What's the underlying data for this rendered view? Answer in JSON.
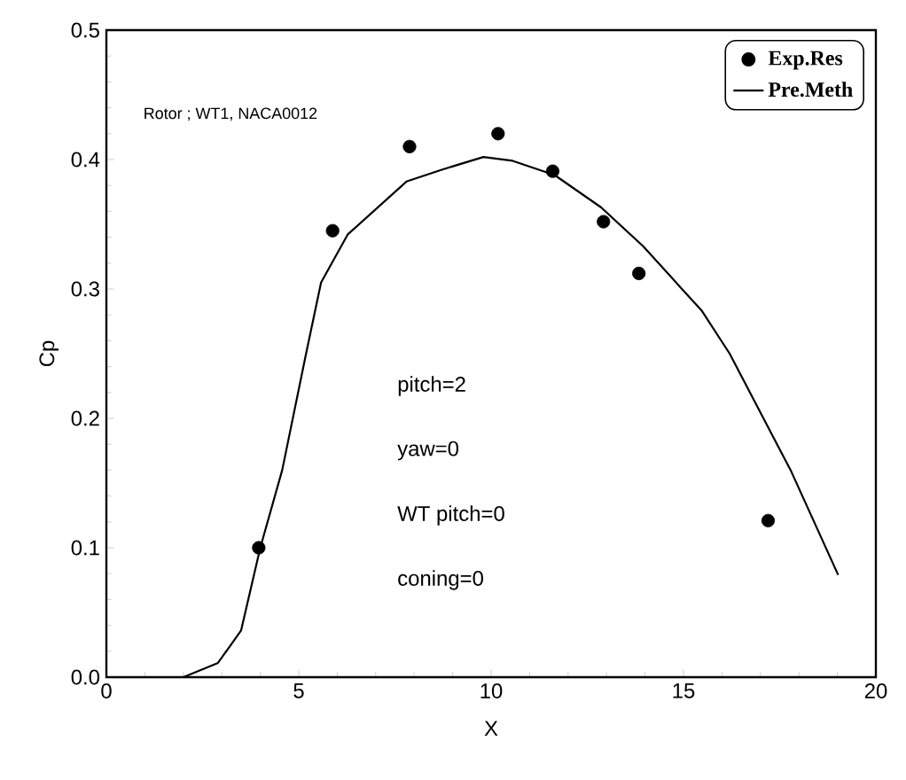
{
  "chart_data": {
    "type": "line",
    "xlabel": "X",
    "ylabel": "Cp",
    "xlim": [
      0,
      20
    ],
    "xticks": [
      0,
      5,
      10,
      15,
      20
    ],
    "ylim": [
      0,
      0.5
    ],
    "yticks": [
      {
        "value": 0,
        "label": "0.0"
      },
      0.1,
      0.2,
      0.3,
      0.4,
      0.5
    ],
    "legend": "top right",
    "annotations": [
      "Rotor ; WT1, NACA0012",
      "pitch=2",
      "yaw=0",
      "WT pitch=0",
      "coning=0"
    ],
    "series": [
      {
        "name": "Exp.Res",
        "type": "scatter",
        "marker": "circle",
        "color": "#000000",
        "x": [
          3.96,
          5.88,
          7.88,
          10.18,
          11.6,
          12.92,
          13.84,
          17.2
        ],
        "values": [
          0.1,
          0.345,
          0.41,
          0.42,
          0.391,
          0.352,
          0.312,
          0.121
        ]
      },
      {
        "name": "Pre.Meth",
        "color": "#000000",
        "x": [
          2,
          2.9,
          3.5,
          4,
          4.57,
          5.19,
          5.58,
          6.27,
          7.8,
          8.7,
          9.8,
          10.56,
          11.65,
          12.86,
          13.95,
          15.48,
          16.2,
          17.8,
          19.02
        ],
        "values": [
          0,
          0.011,
          0.036,
          0.1,
          0.16,
          0.25,
          0.305,
          0.342,
          0.383,
          0.392,
          0.402,
          0.399,
          0.388,
          0.363,
          0.333,
          0.283,
          0.25,
          0.159,
          0.079
        ]
      }
    ]
  }
}
